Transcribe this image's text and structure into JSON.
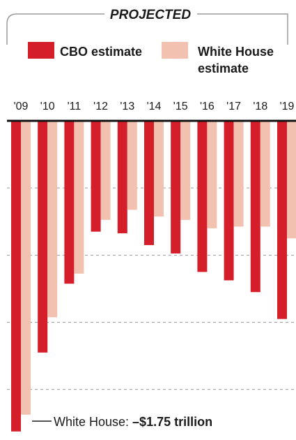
{
  "colors": {
    "cbo": "#d41f2b",
    "white_house": "#f3c1b0",
    "frame": "#9a9a9a",
    "text": "#1a1a1a"
  },
  "chart_data": {
    "type": "bar",
    "title": "PROJECTED",
    "categories": [
      "'09",
      "'10",
      "'11",
      "'12",
      "'13",
      "'14",
      "'15",
      "'16",
      "'17",
      "'18",
      "'19"
    ],
    "series": [
      {
        "name": "CBO estimate",
        "values": [
          -1.85,
          -1.38,
          -0.97,
          -0.66,
          -0.67,
          -0.74,
          -0.79,
          -0.9,
          -0.95,
          -1.02,
          -1.18
        ]
      },
      {
        "name": "White House estimate",
        "values": [
          -1.75,
          -1.17,
          -0.91,
          -0.59,
          -0.53,
          -0.57,
          -0.59,
          -0.64,
          -0.63,
          -0.63,
          -0.7
        ]
      }
    ],
    "legend_labels": {
      "cbo": "CBO estimate",
      "white_house_line1": "White House",
      "white_house_line2": "estimate"
    },
    "annotation": {
      "prefix": "White House: ",
      "value": "–$1.75 trillion"
    },
    "ylim": [
      -1.88,
      0
    ],
    "gridlines": [
      -0.4,
      -0.8,
      -1.2,
      -1.6
    ],
    "grid": true,
    "legend_position": "top"
  }
}
